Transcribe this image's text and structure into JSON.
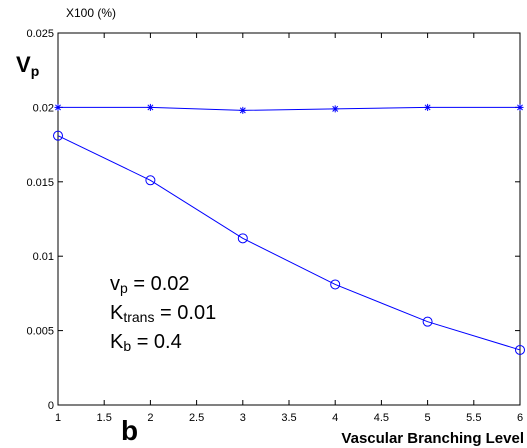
{
  "chart_data": {
    "type": "line",
    "panel_label": "b",
    "ylabel": {
      "main": "V",
      "sub": "p"
    },
    "ylabel_multiplier": "X100 (%)",
    "xlabel": "Vascular Branching Level",
    "xlim": [
      1,
      6
    ],
    "ylim": [
      0,
      0.025
    ],
    "xticks": [
      "1",
      "1.5",
      "2",
      "2.5",
      "3",
      "3.5",
      "4",
      "4.5",
      "5",
      "5.5",
      "6"
    ],
    "yticks": [
      "0",
      "0.005",
      "0.01",
      "0.015",
      "0.02",
      "0.025"
    ],
    "x": [
      1,
      2,
      3,
      4,
      5,
      6
    ],
    "series": [
      {
        "marker": "star",
        "color": "#0000ff",
        "values": [
          0.02,
          0.02,
          0.0198,
          0.0199,
          0.02,
          0.02
        ]
      },
      {
        "marker": "circle",
        "color": "#0000ff",
        "values": [
          0.0181,
          0.0151,
          0.0112,
          0.0081,
          0.0056,
          0.0037
        ]
      }
    ],
    "annotation": [
      {
        "main": "v",
        "sub": "p",
        "rest": " = 0.02"
      },
      {
        "main": "K",
        "sub": "trans",
        "rest": " = 0.01"
      },
      {
        "main": "K",
        "sub": "b",
        "rest": " = 0.4"
      }
    ],
    "grid": false
  }
}
